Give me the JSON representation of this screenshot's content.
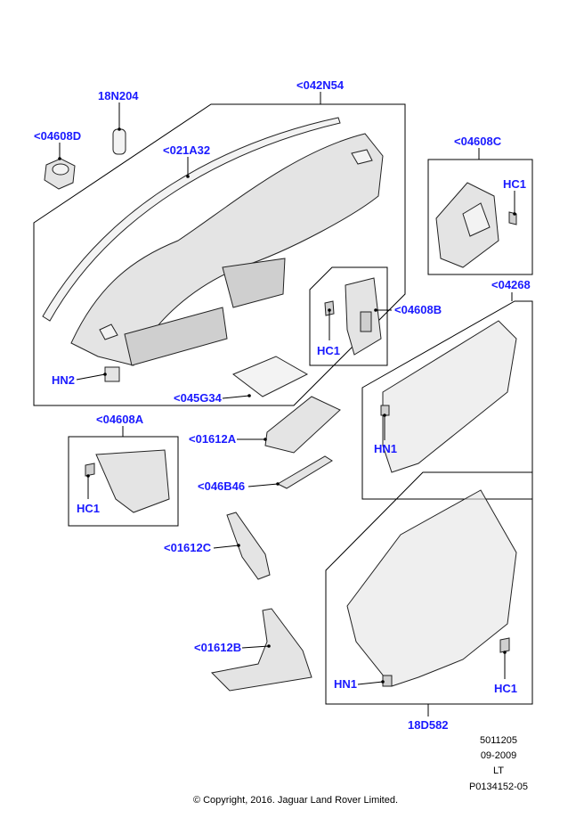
{
  "diagram": {
    "callouts": {
      "c18N204": "18N204",
      "c042N54": "<042N54",
      "c04608D": "<04608D",
      "c021A32": "<021A32",
      "c04608C": "<04608C",
      "hc1_c": "HC1",
      "c04608B": "<04608B",
      "hc1_b": "HC1",
      "c04268": "<04268",
      "hn2": "HN2",
      "c045G34": "<045G34",
      "c01612A": "<01612A",
      "hn1_a": "HN1",
      "c04608A": "<04608A",
      "hc1_a": "HC1",
      "c046B46": "<046B46",
      "c01612C": "<01612C",
      "c01612B": "<01612B",
      "hn1_b": "HN1",
      "hc1_d": "HC1",
      "c18D582": "18D582"
    },
    "label_color": "#1a1aff"
  },
  "footer": {
    "ref_number": "5011205",
    "date": "09-2009",
    "code": "LT",
    "illustration_id": "P0134152-05",
    "copyright": "© Copyright, 2016. Jaguar Land Rover Limited."
  }
}
